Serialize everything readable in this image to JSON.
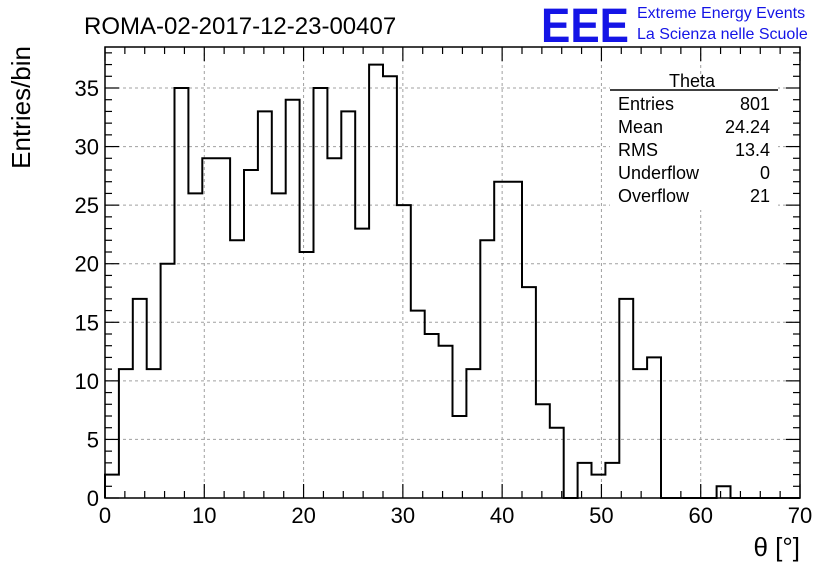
{
  "header": {
    "run_title": "ROMA-02-2017-12-23-00407"
  },
  "logo": {
    "mark": "EEE",
    "line1": "Extreme Energy Events",
    "line2": "La Scienza nelle Scuole",
    "color": "#1414e6"
  },
  "stats_box": {
    "title": "Theta",
    "rows": [
      {
        "label": "Entries",
        "value": "801"
      },
      {
        "label": "Mean",
        "value": "24.24"
      },
      {
        "label": "RMS",
        "value": "13.4"
      },
      {
        "label": "Underflow",
        "value": "0"
      },
      {
        "label": "Overflow",
        "value": "21"
      }
    ]
  },
  "chart_data": {
    "type": "bar",
    "style": "step-histogram",
    "xlabel": "θ [°]",
    "ylabel": "Entries/bin",
    "xlim": [
      0,
      70
    ],
    "ylim": [
      0,
      38.5
    ],
    "bin_width": 1.4,
    "bin_start": 0,
    "xticks": [
      0,
      10,
      20,
      30,
      40,
      50,
      60,
      70
    ],
    "yticks": [
      0,
      5,
      10,
      15,
      20,
      25,
      30,
      35
    ],
    "grid": true,
    "line_color": "#000000",
    "values": [
      2,
      11,
      17,
      11,
      20,
      35,
      26,
      29,
      29,
      22,
      28,
      33,
      26,
      34,
      21,
      35,
      29,
      33,
      23,
      37,
      36,
      25,
      16,
      14,
      13,
      7,
      11,
      22,
      27,
      27,
      18,
      8,
      6,
      0,
      3,
      2,
      3,
      17,
      11,
      12,
      0,
      0,
      0,
      0,
      1,
      0,
      0,
      0,
      0,
      0
    ]
  }
}
